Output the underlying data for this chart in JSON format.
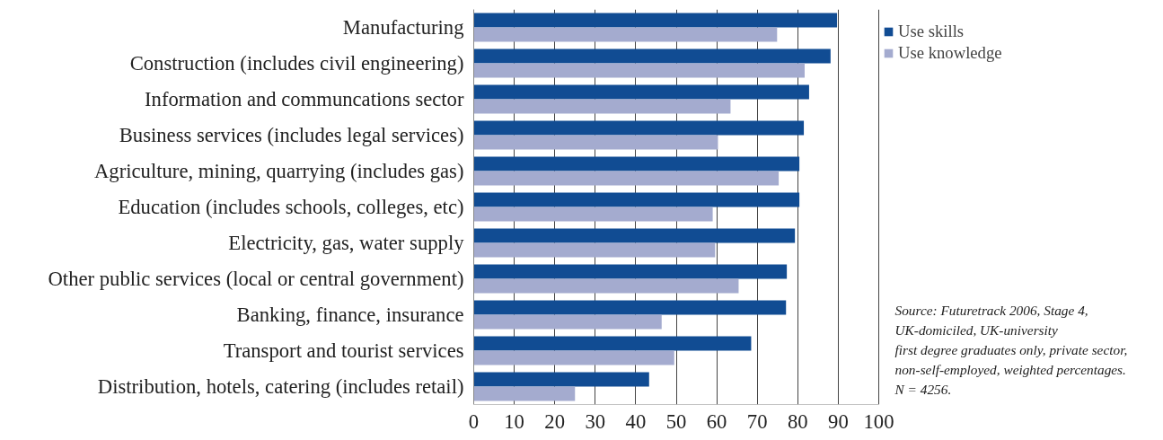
{
  "chart_data": {
    "type": "bar",
    "orientation": "horizontal",
    "categories": [
      "Manufacturing",
      "Construction (includes civil engineering)",
      "Information and communcations sector",
      "Business services (includes legal services)",
      "Agriculture, mining, quarrying (includes gas)",
      "Education (includes schools, colleges, etc)",
      "Electricity, gas, water supply",
      "Other public services (local or central government)",
      "Banking, finance, insurance",
      "Transport and tourist services",
      "Distribution, hotels, catering (includes retail)"
    ],
    "series": [
      {
        "name": "Use skills",
        "color": "#114c93",
        "values": [
          89.7,
          88.1,
          82.8,
          81.5,
          80.4,
          80.4,
          79.3,
          77.3,
          77.1,
          68.5,
          43.3
        ]
      },
      {
        "name": "Use knowledge",
        "color": "#a4abcf",
        "values": [
          74.9,
          81.7,
          63.4,
          60.3,
          75.3,
          59.0,
          59.6,
          65.4,
          46.4,
          49.5,
          25.0
        ]
      }
    ],
    "xlim": [
      0,
      100
    ],
    "xticks": [
      0,
      10,
      20,
      30,
      40,
      50,
      60,
      70,
      80,
      90,
      100
    ],
    "grid": "x",
    "legend": "top right",
    "annotations": [
      "Source: Futuretrack 2006, Stage 4,\nUK-domiciled, UK-university\nfirst degree graduates only, private sector,\nnon-self-employed, weighted percentages.\nN = 4256."
    ]
  }
}
